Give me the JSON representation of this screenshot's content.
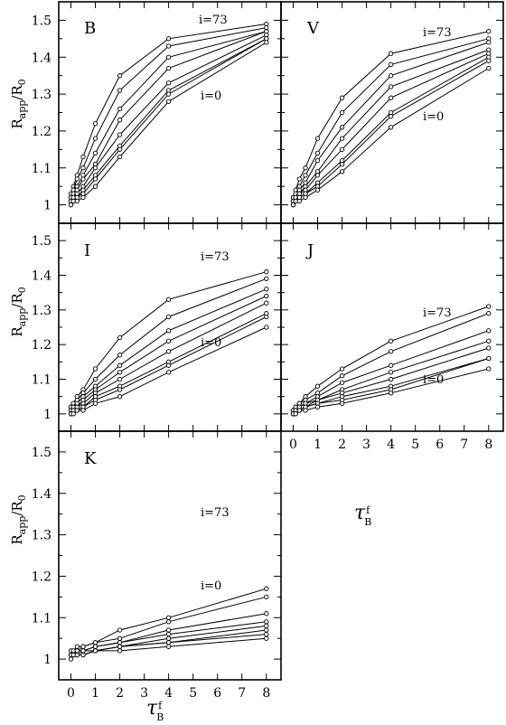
{
  "figure": {
    "ylabel_main": "R",
    "ylabel_sub": "app",
    "ylabel_mid": "/R",
    "ylabel_sub2": "0",
    "xlabel_main": "τ",
    "xlabel_sup": "f",
    "xlabel_sub": "B",
    "ytick_labels": [
      "1",
      "1.1",
      "1.2",
      "1.3",
      "1.4",
      "1.5"
    ],
    "xtick_labels": [
      "0",
      "1",
      "2",
      "3",
      "4",
      "5",
      "6",
      "7",
      "8"
    ]
  },
  "chart_data": [
    {
      "type": "line",
      "band": "B",
      "x": [
        0,
        0.1,
        0.25,
        0.5,
        1,
        2,
        4,
        8
      ],
      "xlim": [
        -0.5,
        8.6
      ],
      "ylim": [
        0.95,
        1.55
      ],
      "xlabel": "τ_B^f",
      "ylabel": "R_app/R_0",
      "annotations": [
        "i=73",
        "i=0"
      ],
      "series": [
        {
          "name": "i=73",
          "values": [
            1.03,
            1.05,
            1.08,
            1.13,
            1.22,
            1.35,
            1.45,
            1.49
          ]
        },
        {
          "name": "",
          "values": [
            1.02,
            1.04,
            1.07,
            1.1,
            1.18,
            1.31,
            1.43,
            1.48
          ]
        },
        {
          "name": "",
          "values": [
            1.02,
            1.03,
            1.05,
            1.08,
            1.14,
            1.26,
            1.4,
            1.47
          ]
        },
        {
          "name": "",
          "values": [
            1.01,
            1.02,
            1.04,
            1.07,
            1.11,
            1.23,
            1.37,
            1.47
          ]
        },
        {
          "name": "",
          "values": [
            1.01,
            1.02,
            1.03,
            1.05,
            1.1,
            1.19,
            1.33,
            1.46
          ]
        },
        {
          "name": "",
          "values": [
            1.01,
            1.01,
            1.02,
            1.04,
            1.08,
            1.16,
            1.31,
            1.45
          ]
        },
        {
          "name": "",
          "values": [
            1.0,
            1.01,
            1.02,
            1.03,
            1.07,
            1.15,
            1.3,
            1.45
          ]
        },
        {
          "name": "i=0",
          "values": [
            1.0,
            1.01,
            1.01,
            1.02,
            1.05,
            1.13,
            1.28,
            1.44
          ]
        }
      ]
    },
    {
      "type": "line",
      "band": "V",
      "x": [
        0,
        0.1,
        0.25,
        0.5,
        1,
        2,
        4,
        8
      ],
      "xlim": [
        -0.5,
        8.6
      ],
      "ylim": [
        0.95,
        1.55
      ],
      "xlabel": "τ_B^f",
      "ylabel": "R_app/R_0",
      "annotations": [
        "i=73",
        "i=0"
      ],
      "series": [
        {
          "name": "i=73",
          "values": [
            1.02,
            1.04,
            1.07,
            1.1,
            1.18,
            1.29,
            1.41,
            1.47
          ]
        },
        {
          "name": "",
          "values": [
            1.02,
            1.03,
            1.05,
            1.08,
            1.14,
            1.25,
            1.38,
            1.45
          ]
        },
        {
          "name": "",
          "values": [
            1.01,
            1.02,
            1.04,
            1.06,
            1.12,
            1.21,
            1.35,
            1.44
          ]
        },
        {
          "name": "",
          "values": [
            1.01,
            1.02,
            1.03,
            1.05,
            1.09,
            1.18,
            1.32,
            1.42
          ]
        },
        {
          "name": "",
          "values": [
            1.01,
            1.01,
            1.03,
            1.04,
            1.08,
            1.15,
            1.29,
            1.41
          ]
        },
        {
          "name": "",
          "values": [
            1.0,
            1.01,
            1.02,
            1.03,
            1.06,
            1.12,
            1.25,
            1.4
          ]
        },
        {
          "name": "",
          "values": [
            1.0,
            1.01,
            1.02,
            1.03,
            1.05,
            1.11,
            1.24,
            1.39
          ]
        },
        {
          "name": "i=0",
          "values": [
            1.0,
            1.01,
            1.01,
            1.02,
            1.04,
            1.09,
            1.21,
            1.37
          ]
        }
      ]
    },
    {
      "type": "line",
      "band": "I",
      "x": [
        0,
        0.1,
        0.25,
        0.5,
        1,
        2,
        4,
        8
      ],
      "xlim": [
        -0.5,
        8.6
      ],
      "ylim": [
        0.95,
        1.55
      ],
      "xlabel": "τ_B^f",
      "ylabel": "R_app/R_0",
      "annotations": [
        "i=73",
        "i=0"
      ],
      "series": [
        {
          "name": "i=73",
          "values": [
            1.02,
            1.03,
            1.05,
            1.07,
            1.13,
            1.22,
            1.33,
            1.41
          ]
        },
        {
          "name": "",
          "values": [
            1.02,
            1.02,
            1.04,
            1.06,
            1.1,
            1.17,
            1.28,
            1.39
          ]
        },
        {
          "name": "",
          "values": [
            1.01,
            1.02,
            1.03,
            1.05,
            1.08,
            1.14,
            1.24,
            1.36
          ]
        },
        {
          "name": "",
          "values": [
            1.01,
            1.01,
            1.02,
            1.04,
            1.07,
            1.12,
            1.21,
            1.34
          ]
        },
        {
          "name": "",
          "values": [
            1.01,
            1.01,
            1.02,
            1.03,
            1.06,
            1.1,
            1.18,
            1.32
          ]
        },
        {
          "name": "",
          "values": [
            1.0,
            1.01,
            1.01,
            1.02,
            1.05,
            1.08,
            1.15,
            1.29
          ]
        },
        {
          "name": "",
          "values": [
            1.0,
            1.01,
            1.01,
            1.02,
            1.04,
            1.07,
            1.14,
            1.28
          ]
        },
        {
          "name": "i=0",
          "values": [
            1.0,
            1.0,
            1.01,
            1.01,
            1.03,
            1.05,
            1.12,
            1.25
          ]
        }
      ]
    },
    {
      "type": "line",
      "band": "J",
      "x": [
        0,
        0.1,
        0.25,
        0.5,
        1,
        2,
        4,
        8
      ],
      "xlim": [
        -0.5,
        8.6
      ],
      "ylim": [
        0.95,
        1.55
      ],
      "xlabel": "τ_B^f",
      "ylabel": "R_app/R_0",
      "annotations": [
        "i=73",
        "i=0"
      ],
      "series": [
        {
          "name": "i=73",
          "values": [
            1.01,
            1.02,
            1.03,
            1.05,
            1.08,
            1.13,
            1.21,
            1.31
          ]
        },
        {
          "name": "",
          "values": [
            1.01,
            1.02,
            1.03,
            1.04,
            1.06,
            1.11,
            1.18,
            1.29
          ]
        },
        {
          "name": "",
          "values": [
            1.01,
            1.01,
            1.02,
            1.03,
            1.05,
            1.09,
            1.14,
            1.24
          ]
        },
        {
          "name": "",
          "values": [
            1.01,
            1.01,
            1.02,
            1.03,
            1.04,
            1.07,
            1.12,
            1.21
          ]
        },
        {
          "name": "",
          "values": [
            1.0,
            1.01,
            1.01,
            1.02,
            1.04,
            1.06,
            1.1,
            1.19
          ]
        },
        {
          "name": "",
          "values": [
            1.0,
            1.01,
            1.01,
            1.02,
            1.03,
            1.05,
            1.08,
            1.16
          ]
        },
        {
          "name": "",
          "values": [
            1.0,
            1.0,
            1.01,
            1.02,
            1.03,
            1.04,
            1.07,
            1.16
          ]
        },
        {
          "name": "i=0",
          "values": [
            1.0,
            1.0,
            1.01,
            1.01,
            1.02,
            1.03,
            1.06,
            1.13
          ]
        }
      ]
    },
    {
      "type": "line",
      "band": "K",
      "x": [
        0,
        0.1,
        0.25,
        0.5,
        1,
        2,
        4,
        8
      ],
      "xlim": [
        -0.5,
        8.6
      ],
      "ylim": [
        0.95,
        1.55
      ],
      "xlabel": "τ_B^f",
      "ylabel": "R_app/R_0",
      "annotations": [
        "i=73",
        "i=0"
      ],
      "series": [
        {
          "name": "i=73",
          "values": [
            1.02,
            1.02,
            1.03,
            1.03,
            1.04,
            1.07,
            1.1,
            1.17
          ]
        },
        {
          "name": "",
          "values": [
            1.01,
            1.02,
            1.02,
            1.03,
            1.04,
            1.05,
            1.09,
            1.15
          ]
        },
        {
          "name": "",
          "values": [
            1.01,
            1.01,
            1.02,
            1.02,
            1.03,
            1.04,
            1.07,
            1.11
          ]
        },
        {
          "name": "",
          "values": [
            1.01,
            1.01,
            1.02,
            1.02,
            1.03,
            1.04,
            1.06,
            1.09
          ]
        },
        {
          "name": "",
          "values": [
            1.01,
            1.01,
            1.01,
            1.02,
            1.02,
            1.03,
            1.05,
            1.08
          ]
        },
        {
          "name": "",
          "values": [
            1.01,
            1.01,
            1.01,
            1.01,
            1.02,
            1.03,
            1.04,
            1.07
          ]
        },
        {
          "name": "",
          "values": [
            1.01,
            1.01,
            1.01,
            1.01,
            1.02,
            1.03,
            1.04,
            1.06
          ]
        },
        {
          "name": "i=0",
          "values": [
            1.0,
            1.01,
            1.01,
            1.01,
            1.02,
            1.02,
            1.03,
            1.05
          ]
        }
      ]
    }
  ]
}
